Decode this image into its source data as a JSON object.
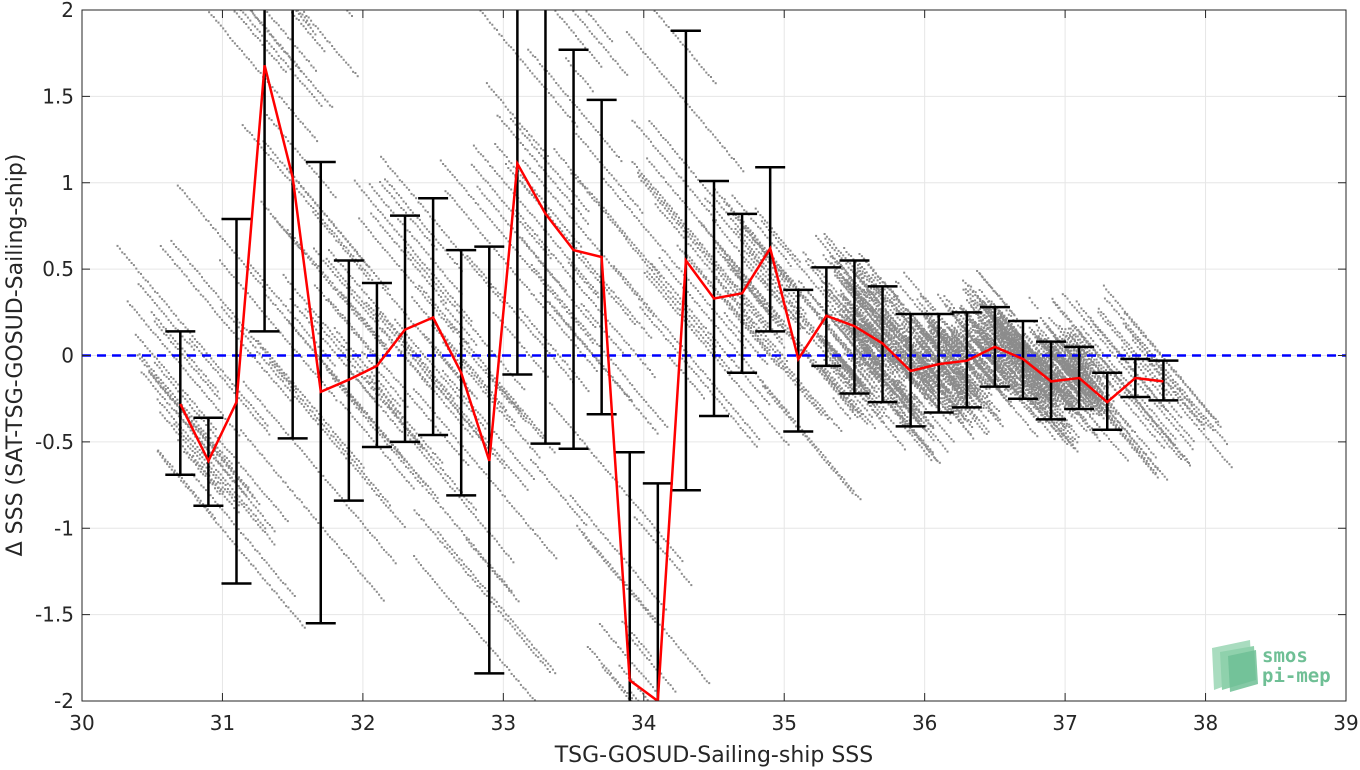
{
  "chart_data": {
    "type": "scatter",
    "title": "",
    "xlabel": "TSG-GOSUD-Sailing-ship SSS",
    "ylabel": "Δ SSS (SAT-TSG-GOSUD-Sailing-ship)",
    "xlim": [
      30,
      39
    ],
    "ylim": [
      -2,
      2
    ],
    "xticks": [
      30,
      31,
      32,
      33,
      34,
      35,
      36,
      37,
      38,
      39
    ],
    "xtick_labels": [
      "30",
      "31",
      "32",
      "33",
      "34",
      "35",
      "36",
      "37",
      "38",
      "39"
    ],
    "yticks": [
      -2,
      -1.5,
      -1,
      -0.5,
      0,
      0.5,
      1,
      1.5,
      2
    ],
    "ytick_labels": [
      "-2",
      "-1.5",
      "-1",
      "-0.5",
      "0",
      "0.5",
      "1",
      "1.5",
      "2"
    ],
    "grid": true,
    "reference_line": {
      "y": 0,
      "color": "#0000ff",
      "style": "dashed"
    },
    "colors": {
      "scatter": "#8c8c8c",
      "mean_line": "#ff0000",
      "error_bars": "#000000",
      "grid": "#e6e6e6"
    },
    "scatter_description": "grey point cloud of individual SAT-minus-ship differences, densest between 35.5 and 37",
    "binned_stats": {
      "x": [
        30.7,
        30.9,
        31.1,
        31.3,
        31.5,
        31.7,
        31.9,
        32.1,
        32.3,
        32.5,
        32.7,
        32.9,
        33.1,
        33.3,
        33.5,
        33.7,
        33.9,
        34.1,
        34.3,
        34.5,
        34.7,
        34.9,
        35.1,
        35.3,
        35.5,
        35.7,
        35.9,
        36.1,
        36.3,
        36.5,
        36.7,
        36.9,
        37.1,
        37.3,
        37.5,
        37.7
      ],
      "mean": [
        -0.28,
        -0.61,
        -0.27,
        1.68,
        1.03,
        -0.21,
        -0.14,
        -0.06,
        0.15,
        0.22,
        -0.1,
        -0.61,
        1.11,
        0.82,
        0.61,
        0.57,
        -1.88,
        -2.0,
        0.55,
        0.33,
        0.36,
        0.62,
        -0.02,
        0.23,
        0.17,
        0.07,
        -0.09,
        -0.05,
        -0.03,
        0.05,
        -0.02,
        -0.15,
        -0.13,
        -0.27,
        -0.13,
        -0.15
      ],
      "err_low": [
        -0.69,
        -0.87,
        -1.32,
        0.14,
        -0.48,
        -1.55,
        -0.84,
        -0.53,
        -0.5,
        -0.46,
        -0.81,
        -1.84,
        -0.11,
        -0.51,
        -0.54,
        -0.34,
        -2.1,
        -2.1,
        -0.78,
        -0.35,
        -0.1,
        0.14,
        -0.44,
        -0.06,
        -0.22,
        -0.27,
        -0.41,
        -0.33,
        -0.3,
        -0.18,
        -0.25,
        -0.37,
        -0.31,
        -0.43,
        -0.24,
        -0.26
      ],
      "err_high": [
        0.14,
        -0.36,
        0.79,
        2.2,
        2.2,
        1.12,
        0.55,
        0.42,
        0.81,
        0.91,
        0.61,
        0.63,
        2.2,
        2.2,
        1.77,
        1.48,
        -0.56,
        -0.74,
        1.88,
        1.01,
        0.82,
        1.09,
        0.38,
        0.51,
        0.55,
        0.4,
        0.24,
        0.24,
        0.25,
        0.28,
        0.2,
        0.08,
        0.05,
        -0.1,
        -0.02,
        -0.03
      ]
    }
  },
  "logo": {
    "line1": "smos",
    "line2": "pi-mep"
  }
}
